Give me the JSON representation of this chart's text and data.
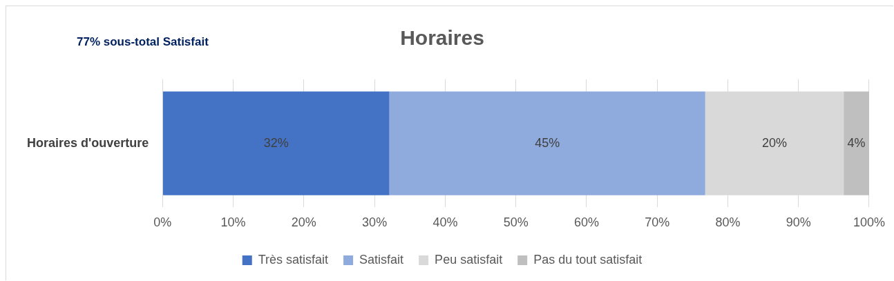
{
  "chart_data": {
    "type": "bar",
    "orientation": "horizontal",
    "stacked": true,
    "title": "Horaires",
    "annotations": [
      "77% sous-total Satisfait"
    ],
    "categories": [
      "Horaires d'ouverture"
    ],
    "series": [
      {
        "name": "Très satisfait",
        "color": "#4472c4",
        "values": [
          32.1
        ],
        "value_labels": [
          "32%"
        ]
      },
      {
        "name": "Satisfait",
        "color": "#8faadc",
        "values": [
          44.7
        ],
        "value_labels": [
          "45%"
        ]
      },
      {
        "name": "Peu satisfait",
        "color": "#d9d9d9",
        "values": [
          19.6
        ],
        "value_labels": [
          "20%"
        ]
      },
      {
        "name": "Pas du tout satisfait",
        "color": "#bfbfbf",
        "values": [
          3.6
        ],
        "value_labels": [
          "4%"
        ]
      }
    ],
    "xlim": [
      0,
      100
    ],
    "xticks": [
      {
        "value": 0,
        "label": "0%"
      },
      {
        "value": 10,
        "label": "10%"
      },
      {
        "value": 20,
        "label": "20%"
      },
      {
        "value": 30,
        "label": "30%"
      },
      {
        "value": 40,
        "label": "40%"
      },
      {
        "value": 50,
        "label": "50%"
      },
      {
        "value": 60,
        "label": "60%"
      },
      {
        "value": 70,
        "label": "70%"
      },
      {
        "value": 80,
        "label": "80%"
      },
      {
        "value": 90,
        "label": "90%"
      },
      {
        "value": 100,
        "label": "100%"
      }
    ],
    "grid": "x",
    "legend": "bottom"
  }
}
